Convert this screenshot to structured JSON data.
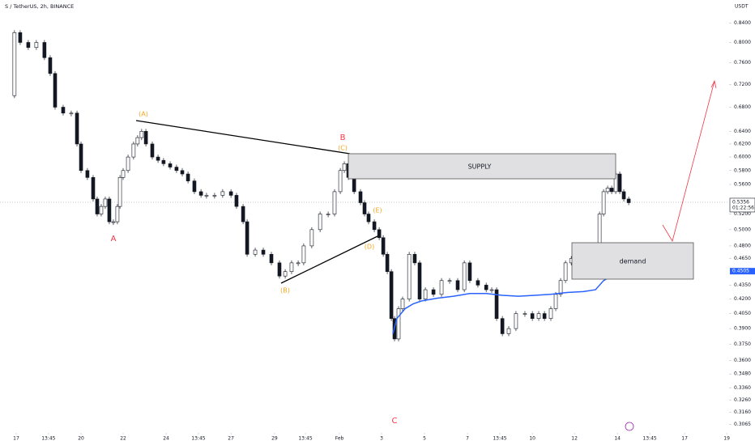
{
  "chart_data": {
    "type": "candlestick",
    "title": "S / TetherUS, 2h, BINANCE",
    "y_axis_label": "USDT",
    "log_scale": true,
    "xlim": [
      -0.76,
      33.52
    ],
    "ylim": [
      0.302,
      0.89
    ],
    "xticks": [
      {
        "value": 0,
        "label": "17"
      },
      {
        "value": 1.52,
        "label": "13:45"
      },
      {
        "value": 3.05,
        "label": "20"
      },
      {
        "value": 5.03,
        "label": "22"
      },
      {
        "value": 7.05,
        "label": "24"
      },
      {
        "value": 8.57,
        "label": "13:45"
      },
      {
        "value": 10.1,
        "label": "27"
      },
      {
        "value": 12.15,
        "label": "29"
      },
      {
        "value": 13.6,
        "label": "13:45"
      },
      {
        "value": 15.2,
        "label": "Feb"
      },
      {
        "value": 17.18,
        "label": "3"
      },
      {
        "value": 19.2,
        "label": "5"
      },
      {
        "value": 21.22,
        "label": "7"
      },
      {
        "value": 22.74,
        "label": "13:45"
      },
      {
        "value": 24.27,
        "label": "10"
      },
      {
        "value": 26.25,
        "label": "12"
      },
      {
        "value": 28.27,
        "label": "14"
      },
      {
        "value": 29.79,
        "label": "13:45"
      },
      {
        "value": 31.43,
        "label": "17"
      },
      {
        "value": 33.41,
        "label": "19"
      }
    ],
    "yticks": [
      {
        "value": 0.84,
        "label": "0.8400"
      },
      {
        "value": 0.8,
        "label": "0.8000"
      },
      {
        "value": 0.76,
        "label": "0.7600"
      },
      {
        "value": 0.72,
        "label": "0.7200"
      },
      {
        "value": 0.68,
        "label": "0.6800"
      },
      {
        "value": 0.64,
        "label": "0.6400"
      },
      {
        "value": 0.62,
        "label": "0.6200"
      },
      {
        "value": 0.6,
        "label": "0.6000"
      },
      {
        "value": 0.58,
        "label": "0.5800"
      },
      {
        "value": 0.56,
        "label": "0.5600"
      },
      {
        "value": 0.52,
        "label": "0.5200"
      },
      {
        "value": 0.5,
        "label": "0.5000"
      },
      {
        "value": 0.48,
        "label": "0.4800"
      },
      {
        "value": 0.465,
        "label": "0.4650"
      },
      {
        "value": 0.435,
        "label": "0.4350"
      },
      {
        "value": 0.42,
        "label": "0.4200"
      },
      {
        "value": 0.405,
        "label": "0.4050"
      },
      {
        "value": 0.39,
        "label": "0.3900"
      },
      {
        "value": 0.375,
        "label": "0.3750"
      },
      {
        "value": 0.36,
        "label": "0.3600"
      },
      {
        "value": 0.348,
        "label": "0.3480"
      },
      {
        "value": 0.336,
        "label": "0.3360"
      },
      {
        "value": 0.326,
        "label": "0.3260"
      },
      {
        "value": 0.316,
        "label": "0.3160"
      },
      {
        "value": 0.3065,
        "label": "0.3065"
      }
    ],
    "series": [
      {
        "name": "S/USDT",
        "color": "#131722",
        "x": [
          -0.19,
          -0.08,
          0.19,
          0.57,
          0.95,
          1.33,
          1.6,
          1.83,
          2.21,
          2.59,
          2.86,
          3.05,
          3.35,
          3.62,
          3.81,
          4.0,
          4.19,
          4.38,
          4.57,
          4.76,
          4.88,
          5.03,
          5.26,
          5.52,
          5.71,
          5.9,
          6.1,
          6.4,
          6.67,
          6.93,
          7.24,
          7.54,
          7.81,
          8.08,
          8.38,
          8.69,
          8.95,
          9.33,
          9.71,
          10.1,
          10.36,
          10.67,
          10.86,
          11.24,
          11.62,
          12.0,
          12.38,
          12.65,
          12.95,
          13.26,
          13.52,
          13.9,
          14.29,
          14.67,
          14.97,
          15.24,
          15.43,
          15.62,
          15.89,
          16.19,
          16.38,
          16.57,
          16.84,
          17.07,
          17.26,
          17.45,
          17.64,
          17.79,
          17.98,
          18.17,
          18.48,
          18.74,
          18.97,
          19.24,
          19.62,
          20.0,
          20.38,
          20.76,
          21.07,
          21.33,
          21.71,
          22.1,
          22.36,
          22.59,
          22.86,
          23.16,
          23.5,
          23.92,
          24.27,
          24.57,
          24.84,
          25.14,
          25.37,
          25.6,
          25.83,
          26.1,
          26.36,
          26.67,
          26.97,
          27.24,
          27.43,
          27.62,
          27.81,
          28.0,
          28.19,
          28.38,
          28.57,
          28.8
        ],
        "values": [
          0.7,
          0.82,
          0.8,
          0.79,
          0.8,
          0.77,
          0.74,
          0.68,
          0.67,
          0.67,
          0.62,
          0.58,
          0.57,
          0.54,
          0.52,
          0.53,
          0.54,
          0.51,
          0.51,
          0.53,
          0.57,
          0.58,
          0.6,
          0.62,
          0.63,
          0.64,
          0.62,
          0.6,
          0.595,
          0.59,
          0.585,
          0.58,
          0.575,
          0.565,
          0.55,
          0.545,
          0.545,
          0.545,
          0.55,
          0.545,
          0.53,
          0.51,
          0.47,
          0.475,
          0.47,
          0.46,
          0.445,
          0.45,
          0.46,
          0.46,
          0.48,
          0.5,
          0.52,
          0.52,
          0.55,
          0.58,
          0.59,
          0.57,
          0.55,
          0.535,
          0.52,
          0.51,
          0.5,
          0.49,
          0.47,
          0.45,
          0.4,
          0.38,
          0.41,
          0.42,
          0.47,
          0.46,
          0.42,
          0.43,
          0.425,
          0.44,
          0.44,
          0.43,
          0.46,
          0.44,
          0.435,
          0.43,
          0.43,
          0.4,
          0.385,
          0.39,
          0.405,
          0.405,
          0.4,
          0.405,
          0.4,
          0.41,
          0.425,
          0.44,
          0.46,
          0.465,
          0.455,
          0.46,
          0.465,
          0.47,
          0.52,
          0.55,
          0.555,
          0.55,
          0.575,
          0.55,
          0.54,
          0.535
        ]
      },
      {
        "name": "VWAP",
        "color": "#2962ff",
        "x": [
          17.71,
          17.9,
          18.29,
          18.67,
          19.05,
          19.81,
          20.57,
          21.33,
          22.1,
          22.86,
          23.62,
          24.38,
          25.14,
          25.9,
          26.67,
          27.24,
          27.62,
          28.19,
          28.76
        ],
        "values": [
          0.385,
          0.4,
          0.41,
          0.415,
          0.418,
          0.421,
          0.423,
          0.426,
          0.426,
          0.424,
          0.423,
          0.424,
          0.425,
          0.427,
          0.428,
          0.43,
          0.44,
          0.448,
          0.452
        ]
      }
    ],
    "last_price": 0.5356,
    "countdown": "01:22:56",
    "vwap_price": 0.4505,
    "zones": [
      "SUPPLY",
      "demand"
    ],
    "annotations": [
      "A",
      "B",
      "C",
      "(A)",
      "(B)",
      "(C)",
      "(D)",
      "(E)"
    ]
  }
}
